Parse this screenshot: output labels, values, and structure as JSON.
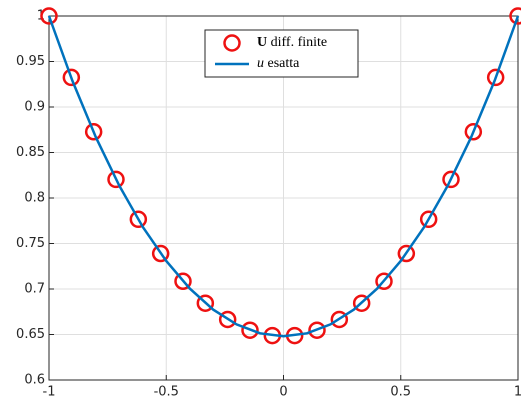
{
  "chart_data": {
    "type": "line_scatter",
    "series": [
      {
        "name": "U diff. finite",
        "kind": "scatter",
        "color": "#ee1111",
        "x": [
          -1,
          -0.90476,
          -0.80952,
          -0.71429,
          -0.61905,
          -0.52381,
          -0.42857,
          -0.33333,
          -0.2381,
          -0.14286,
          -0.04762,
          0.04762,
          0.14286,
          0.2381,
          0.33333,
          0.42857,
          0.52381,
          0.61905,
          0.71429,
          0.80952,
          0.90476,
          1
        ],
        "values": [
          1,
          0.9325,
          0.8728,
          0.8204,
          0.7766,
          0.739,
          0.7085,
          0.6844,
          0.6665,
          0.6547,
          0.6488,
          0.6488,
          0.6547,
          0.6665,
          0.6844,
          0.7085,
          0.739,
          0.7766,
          0.8204,
          0.8728,
          0.9325,
          1
        ]
      },
      {
        "name": "u esatta",
        "kind": "line",
        "color": "#0072bd",
        "x": [
          -1,
          -0.9,
          -0.8,
          -0.7,
          -0.6,
          -0.5,
          -0.4,
          -0.3,
          -0.2,
          -0.1,
          0,
          0.1,
          0.2,
          0.3,
          0.4,
          0.5,
          0.6,
          0.7,
          0.8,
          0.9,
          1
        ],
        "values": [
          1,
          0.9287,
          0.8667,
          0.8134,
          0.7682,
          0.7308,
          0.7006,
          0.6774,
          0.6611,
          0.6513,
          0.6481,
          0.6513,
          0.6611,
          0.6774,
          0.7006,
          0.7308,
          0.7682,
          0.8134,
          0.8667,
          0.9287,
          1
        ]
      }
    ],
    "xlim": [
      -1,
      1
    ],
    "xticks": [
      -1,
      -0.5,
      0,
      0.5,
      1
    ],
    "ylim": [
      0.6,
      1
    ],
    "yticks": [
      0.6,
      0.65,
      0.7,
      0.75,
      0.8,
      0.85,
      0.9,
      0.95,
      1
    ],
    "grid": true,
    "legend": "north"
  }
}
